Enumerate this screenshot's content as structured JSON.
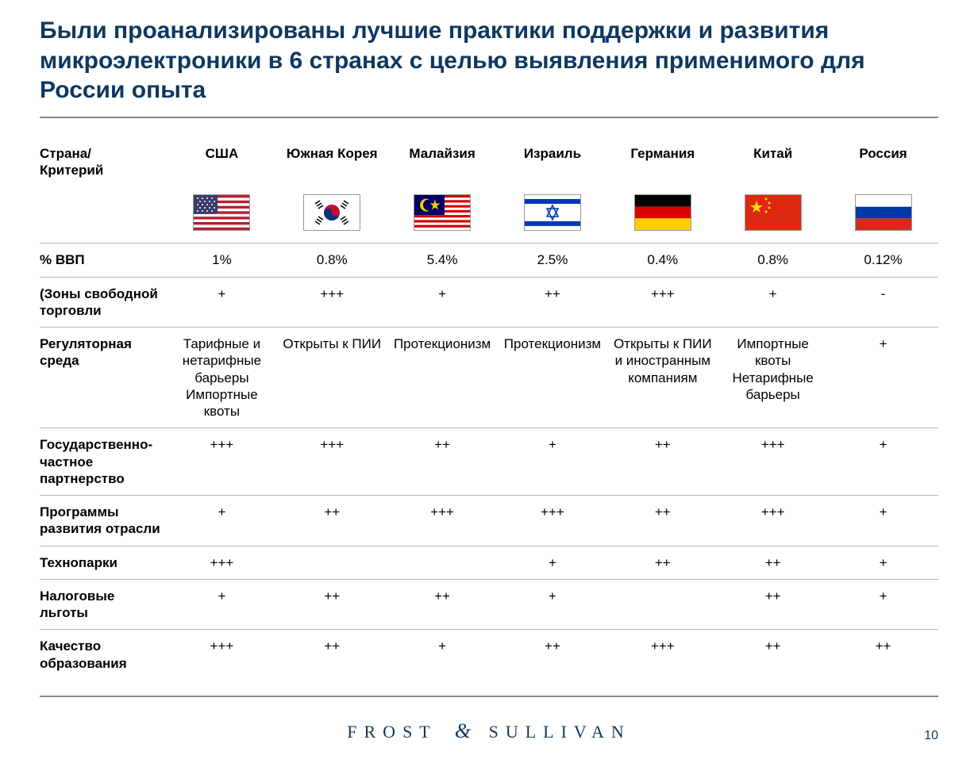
{
  "title": "Были проанализированы лучшие практики поддержки и развития микроэлектроники в 6 странах с целью выявления применимого для России опыта",
  "colors": {
    "heading": "#0e3860",
    "divider": "#8a8a8a",
    "rowline": "#b8b8b8",
    "text": "#000000",
    "footer": "#10375c",
    "background": "#ffffff"
  },
  "typography": {
    "title_fontsize": 30,
    "cell_fontsize": 17,
    "footer_fontsize": 22
  },
  "header_label": "Страна/\nКритерий",
  "countries": [
    {
      "key": "usa",
      "name": "США"
    },
    {
      "key": "kor",
      "name": "Южная Корея"
    },
    {
      "key": "mys",
      "name": "Малайзия"
    },
    {
      "key": "isr",
      "name": "Израиль"
    },
    {
      "key": "deu",
      "name": "Германия"
    },
    {
      "key": "chn",
      "name": "Китай"
    },
    {
      "key": "rus",
      "name": "Россия"
    }
  ],
  "rows": [
    {
      "label": "% ВВП",
      "cells": [
        "1%",
        "0.8%",
        "5.4%",
        "2.5%",
        "0.4%",
        "0.8%",
        "0.12%"
      ]
    },
    {
      "label": "(Зоны свободной торговли",
      "cells": [
        "+",
        "+++",
        "+",
        "++",
        "+++",
        "+",
        "-"
      ]
    },
    {
      "label": "Регуляторная среда",
      "cells": [
        "Тарифные и нетарифные барьеры\nИмпортные квоты",
        "Открыты к ПИИ",
        "Протекционизм",
        "Протекционизм",
        "Открыты к ПИИ и иностранным компаниям",
        "Импортные квоты\nНетарифные барьеры",
        "+"
      ]
    },
    {
      "label": "Государственно-частное партнерство",
      "cells": [
        "+++",
        "+++",
        "++",
        "+",
        "++",
        "+++",
        "+"
      ]
    },
    {
      "label": "Программы развития отрасли",
      "cells": [
        "+",
        "++",
        "+++",
        "+++",
        "++",
        "+++",
        "+"
      ]
    },
    {
      "label": "Технопарки",
      "cells": [
        "+++",
        "",
        "",
        "+",
        "++",
        "++",
        "+"
      ]
    },
    {
      "label": "Налоговые льготы",
      "cells": [
        "+",
        "++",
        "++",
        "+",
        "",
        "++",
        "+"
      ]
    },
    {
      "label": "Качество образования",
      "cells": [
        "+++",
        "++",
        "+",
        "++",
        "+++",
        "++",
        "++"
      ]
    }
  ],
  "footer": {
    "brand_left": "FROST",
    "brand_amp": "&",
    "brand_right": "SULLIVAN",
    "page": "10"
  }
}
